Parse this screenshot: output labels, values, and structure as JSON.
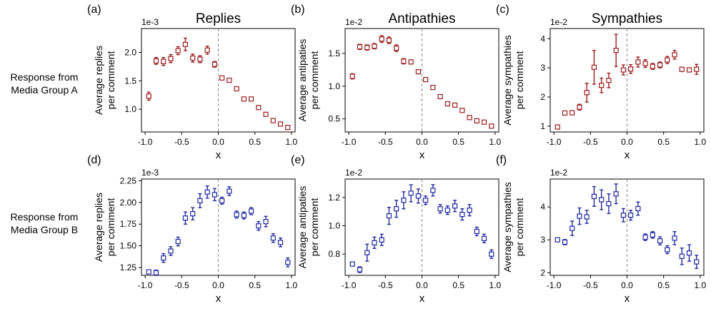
{
  "row_labels": [
    [
      "Response from",
      "Media Group A"
    ],
    [
      "Response from",
      "Media Group B"
    ]
  ],
  "chart_data": [
    {
      "panel": "(a)",
      "title": "Replies",
      "type": "scatter",
      "errorbars": true,
      "xlabel": "x",
      "ylabel": [
        "Average replies",
        "per comment"
      ],
      "exponent": "1e-3",
      "color": "#9b1c1c",
      "xlim": [
        -1.05,
        1.05
      ],
      "ylim": [
        0.6,
        2.42
      ],
      "xticks": [
        -1.0,
        -0.5,
        0.0,
        0.5,
        1.0
      ],
      "yticks": [
        1.0,
        1.5,
        2.0
      ],
      "ytick_decimals": 1,
      "x": [
        -0.95,
        -0.85,
        -0.75,
        -0.65,
        -0.55,
        -0.45,
        -0.35,
        -0.25,
        -0.15,
        -0.05,
        0.05,
        0.15,
        0.25,
        0.35,
        0.45,
        0.55,
        0.65,
        0.75,
        0.85,
        0.95
      ],
      "y": [
        1.23,
        1.85,
        1.84,
        1.89,
        2.03,
        2.14,
        1.9,
        1.88,
        2.04,
        1.79,
        1.55,
        1.51,
        1.36,
        1.18,
        1.18,
        1.03,
        0.91,
        0.8,
        0.74,
        0.68
      ],
      "err": [
        0.07,
        0.06,
        0.07,
        0.07,
        0.07,
        0.11,
        0.07,
        0.06,
        0.07,
        0.05,
        0.03,
        0.03,
        0.03,
        0.03,
        0.03,
        0.02,
        0.02,
        0.02,
        0.02,
        0.02
      ]
    },
    {
      "panel": "(b)",
      "title": "Antipathies",
      "type": "scatter",
      "errorbars": true,
      "xlabel": "x",
      "ylabel": [
        "Average antipaties",
        "per comment"
      ],
      "exponent": "1e-2",
      "color": "#9b1c1c",
      "xlim": [
        -1.05,
        1.05
      ],
      "ylim": [
        0.3,
        1.88
      ],
      "xticks": [
        -1.0,
        -0.5,
        0.0,
        0.5,
        1.0
      ],
      "yticks": [
        0.5,
        1.0,
        1.5
      ],
      "ytick_decimals": 1,
      "x": [
        -0.95,
        -0.85,
        -0.75,
        -0.65,
        -0.55,
        -0.45,
        -0.35,
        -0.25,
        -0.15,
        -0.05,
        0.05,
        0.15,
        0.25,
        0.35,
        0.45,
        0.55,
        0.65,
        0.75,
        0.85,
        0.95
      ],
      "y": [
        1.15,
        1.6,
        1.59,
        1.61,
        1.72,
        1.7,
        1.58,
        1.38,
        1.37,
        1.22,
        1.1,
        0.98,
        0.84,
        0.73,
        0.71,
        0.63,
        0.52,
        0.47,
        0.45,
        0.39
      ],
      "err": [
        0.04,
        0.04,
        0.04,
        0.04,
        0.05,
        0.05,
        0.05,
        0.04,
        0.03,
        0.03,
        0.03,
        0.02,
        0.02,
        0.02,
        0.02,
        0.02,
        0.02,
        0.02,
        0.02,
        0.02
      ]
    },
    {
      "panel": "(c)",
      "title": "Sympathies",
      "type": "scatter",
      "errorbars": true,
      "xlabel": "x",
      "ylabel": [
        "Average sympathies",
        "per comment"
      ],
      "exponent": "1e-2",
      "color": "#9b1c1c",
      "xlim": [
        -1.05,
        1.05
      ],
      "ylim": [
        0.8,
        4.35
      ],
      "xticks": [
        -1.0,
        -0.5,
        0.0,
        0.5,
        1.0
      ],
      "yticks": [
        1,
        2,
        3,
        4
      ],
      "ytick_decimals": 0,
      "x": [
        -0.95,
        -0.85,
        -0.75,
        -0.65,
        -0.55,
        -0.45,
        -0.35,
        -0.25,
        -0.15,
        -0.05,
        0.05,
        0.15,
        0.25,
        0.35,
        0.45,
        0.55,
        0.65,
        0.75,
        0.85,
        0.95
      ],
      "y": [
        0.97,
        1.45,
        1.46,
        1.65,
        2.15,
        3.02,
        2.4,
        2.57,
        3.6,
        2.93,
        2.96,
        3.2,
        3.15,
        3.05,
        3.1,
        3.27,
        3.45,
        2.95,
        2.93,
        2.95
      ],
      "err": [
        0.05,
        0.05,
        0.05,
        0.1,
        0.32,
        0.58,
        0.25,
        0.25,
        0.55,
        0.17,
        0.15,
        0.17,
        0.13,
        0.1,
        0.1,
        0.12,
        0.15,
        0.07,
        0.07,
        0.17
      ]
    },
    {
      "panel": "(d)",
      "title": "",
      "type": "scatter",
      "errorbars": true,
      "xlabel": "x",
      "ylabel": [
        "Average replies",
        "per comment"
      ],
      "exponent": "1e-3",
      "color": "#1f2aa0",
      "xlim": [
        -1.05,
        1.05
      ],
      "ylim": [
        1.16,
        2.27
      ],
      "xticks": [
        -1.0,
        -0.5,
        0.0,
        0.5,
        1.0
      ],
      "yticks": [
        1.25,
        1.5,
        1.75,
        2.0,
        2.25
      ],
      "ytick_decimals": 2,
      "x": [
        -0.95,
        -0.85,
        -0.75,
        -0.65,
        -0.55,
        -0.45,
        -0.35,
        -0.25,
        -0.15,
        -0.05,
        0.05,
        0.15,
        0.25,
        0.35,
        0.45,
        0.55,
        0.65,
        0.75,
        0.85,
        0.95
      ],
      "y": [
        1.2,
        1.19,
        1.36,
        1.44,
        1.55,
        1.82,
        1.87,
        2.02,
        2.12,
        2.09,
        2.02,
        2.13,
        1.86,
        1.85,
        1.9,
        1.73,
        1.78,
        1.59,
        1.54,
        1.31
      ],
      "err": [
        0.015,
        0.03,
        0.05,
        0.05,
        0.05,
        0.07,
        0.07,
        0.08,
        0.07,
        0.07,
        0.04,
        0.05,
        0.04,
        0.04,
        0.04,
        0.05,
        0.06,
        0.05,
        0.05,
        0.05
      ]
    },
    {
      "panel": "(e)",
      "title": "",
      "type": "scatter",
      "errorbars": true,
      "xlabel": "x",
      "ylabel": [
        "Average antipaties",
        "per comment"
      ],
      "exponent": "1e-2",
      "color": "#1f2aa0",
      "xlim": [
        -1.05,
        1.05
      ],
      "ylim": [
        0.65,
        1.33
      ],
      "xticks": [
        -1.0,
        -0.5,
        0.0,
        0.5,
        1.0
      ],
      "yticks": [
        0.8,
        1.0,
        1.2
      ],
      "ytick_decimals": 1,
      "x": [
        -0.95,
        -0.85,
        -0.75,
        -0.65,
        -0.55,
        -0.45,
        -0.35,
        -0.25,
        -0.15,
        -0.05,
        0.05,
        0.15,
        0.25,
        0.35,
        0.45,
        0.55,
        0.65,
        0.75,
        0.85,
        0.95
      ],
      "y": [
        0.73,
        0.69,
        0.81,
        0.88,
        0.9,
        1.07,
        1.12,
        1.18,
        1.23,
        1.21,
        1.18,
        1.25,
        1.12,
        1.11,
        1.14,
        1.08,
        1.11,
        0.96,
        0.91,
        0.8
      ],
      "err": [
        0.01,
        0.02,
        0.06,
        0.04,
        0.04,
        0.06,
        0.06,
        0.06,
        0.06,
        0.05,
        0.03,
        0.04,
        0.03,
        0.03,
        0.04,
        0.04,
        0.04,
        0.03,
        0.03,
        0.03
      ]
    },
    {
      "panel": "(f)",
      "title": "",
      "type": "scatter",
      "errorbars": true,
      "xlabel": "x",
      "ylabel": [
        "Average sympathies",
        "per comment"
      ],
      "exponent": "1e-2",
      "color": "#1f2aa0",
      "xlim": [
        -1.05,
        1.05
      ],
      "ylim": [
        1.92,
        4.85
      ],
      "xticks": [
        -1.0,
        -0.5,
        0.0,
        0.5,
        1.0
      ],
      "yticks": [
        2,
        3,
        4
      ],
      "ytick_decimals": 0,
      "x": [
        -0.95,
        -0.85,
        -0.75,
        -0.65,
        -0.55,
        -0.45,
        -0.35,
        -0.25,
        -0.15,
        -0.05,
        0.05,
        0.15,
        0.25,
        0.35,
        0.45,
        0.55,
        0.65,
        0.75,
        0.85,
        0.95
      ],
      "y": [
        3.0,
        2.93,
        3.35,
        3.72,
        3.7,
        4.32,
        4.22,
        4.1,
        4.4,
        3.75,
        3.75,
        3.95,
        3.08,
        3.15,
        2.97,
        2.7,
        3.05,
        2.5,
        2.6,
        2.33
      ],
      "err": [
        0.05,
        0.08,
        0.22,
        0.25,
        0.2,
        0.3,
        0.3,
        0.3,
        0.3,
        0.2,
        0.15,
        0.2,
        0.1,
        0.1,
        0.12,
        0.12,
        0.2,
        0.25,
        0.25,
        0.2
      ]
    }
  ]
}
